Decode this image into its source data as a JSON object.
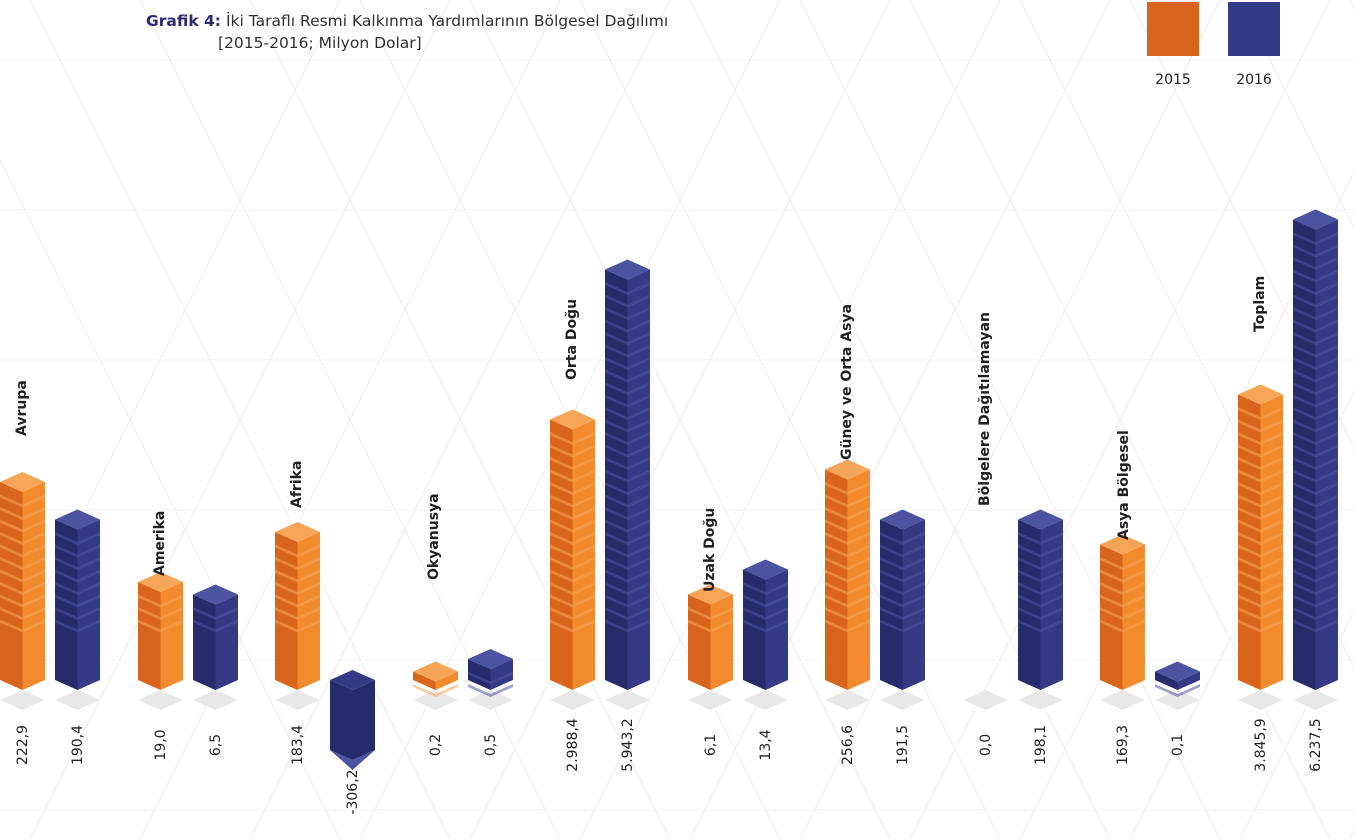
{
  "title": {
    "prefix": "Grafik 4:",
    "main": "İki Taraflı Resmi Kalkınma Yardımlarının Bölgesel Dağılımı",
    "subtitle": "[2015-2016; Milyon Dolar]"
  },
  "colors": {
    "s2015": {
      "front": "#f28a2e",
      "side": "#d9651c",
      "top": "#f6a455"
    },
    "s2016": {
      "front": "#343a86",
      "side": "#262b6c",
      "top": "#4c53a0"
    },
    "diamond": "#e8e8e8",
    "pattern": "#efeff1"
  },
  "chart_data": {
    "type": "bar",
    "title": "İki Taraflı Resmi Kalkınma Yardımlarının Bölgesel Dağılımı",
    "subtitle": "[2015-2016; Milyon Dolar]",
    "legend_position": "top-right",
    "categories": [
      "Avrupa",
      "Amerika",
      "Afrika",
      "Okyanusya",
      "Orta Doğu",
      "Uzak Doğu",
      "Güney ve Orta Asya",
      "Bölgelere Dağıtılamayan",
      "Asya Bölgesel",
      "Toplam"
    ],
    "series": [
      {
        "name": "2015",
        "values": [
          222.9,
          19.0,
          183.4,
          0.2,
          2988.4,
          6.1,
          256.6,
          0.0,
          169.3,
          3845.9
        ],
        "labels": [
          "222,9",
          "19,0",
          "183,4",
          "0,2",
          "2.988,4",
          "6,1",
          "256,6",
          "0,0",
          "169,3",
          "3.845,9"
        ],
        "units": [
          12,
          4,
          8,
          1,
          17,
          3,
          13,
          0,
          7,
          19
        ]
      },
      {
        "name": "2016",
        "values": [
          190.4,
          6.5,
          -306.2,
          0.5,
          5943.2,
          13.4,
          191.5,
          198.1,
          0.1,
          6237.5
        ],
        "labels": [
          "190,4",
          "6,5",
          "-306,2",
          "0,5",
          "5.943,2",
          "13,4",
          "191,5",
          "198,1",
          "0,1",
          "6.237,5"
        ],
        "units": [
          9,
          3,
          -1,
          2,
          29,
          5,
          9,
          9,
          1,
          33
        ]
      }
    ]
  }
}
